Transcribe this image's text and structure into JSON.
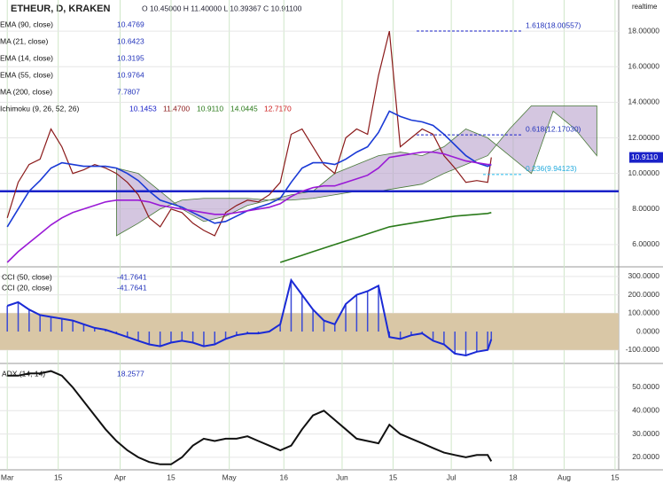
{
  "header": {
    "symbol": "ETHEUR, D, KRAKEN",
    "ohlc": "O 10.45000 H 11.40000 L 10.39367 C 10.91100",
    "realtime": "realtime",
    "last_price_label": "10.9110"
  },
  "legend": [
    {
      "label": "EMA (90, close)",
      "value": "10.4769"
    },
    {
      "label": "MA (21, close)",
      "value": "10.6423"
    },
    {
      "label": "EMA (14, close)",
      "value": "10.3195"
    },
    {
      "label": "EMA (55, close)",
      "value": "10.9764"
    },
    {
      "label": "MA (200, close)",
      "value": "7.7807"
    },
    {
      "label": "Ichimoku (9, 26, 52, 26)",
      "values": [
        "10.1453",
        "11.4700",
        "10.9110",
        "14.0445",
        "12.7170"
      ]
    }
  ],
  "chart_data": [
    {
      "type": "line",
      "xlim": [
        -2,
        168
      ],
      "ylim": [
        4.8,
        19.75
      ],
      "xticks": [
        {
          "value": 0,
          "label": "Mar"
        },
        {
          "value": 14,
          "label": "15"
        },
        {
          "value": 31,
          "label": "Apr"
        },
        {
          "value": 45,
          "label": "15"
        },
        {
          "value": 61,
          "label": "May"
        },
        {
          "value": 76,
          "label": "16"
        },
        {
          "value": 92,
          "label": "Jun"
        },
        {
          "value": 106,
          "label": "15"
        },
        {
          "value": 122,
          "label": "Jul"
        },
        {
          "value": 139,
          "label": "18"
        },
        {
          "value": 153,
          "label": "Aug"
        },
        {
          "value": 167,
          "label": "15"
        }
      ],
      "yticks": [
        {
          "value": 6,
          "label": "6.00000"
        },
        {
          "value": 8,
          "label": "8.00000"
        },
        {
          "value": 10,
          "label": "10.00000"
        },
        {
          "value": 12,
          "label": "12.00000"
        },
        {
          "value": 14,
          "label": "14.00000"
        },
        {
          "value": 16,
          "label": "16.00000"
        },
        {
          "value": 18,
          "label": "18.00000"
        }
      ],
      "grid": true,
      "x": [
        0,
        3,
        6,
        9,
        12,
        15,
        18,
        21,
        24,
        27,
        30,
        33,
        36,
        39,
        42,
        45,
        48,
        51,
        54,
        57,
        60,
        63,
        66,
        69,
        72,
        75,
        78,
        81,
        84,
        87,
        90,
        93,
        96,
        99,
        102,
        105,
        108,
        111,
        114,
        117,
        120,
        123,
        126,
        129,
        132,
        133
      ],
      "series": [
        {
          "name": "ETHEUR, D, KRAKEN",
          "color": "#8b1a1a",
          "values": [
            7.5,
            9.5,
            10.5,
            10.8,
            12.5,
            11.5,
            10.0,
            10.2,
            10.5,
            10.3,
            10.0,
            9.5,
            8.8,
            7.5,
            7.0,
            8.0,
            7.8,
            7.2,
            6.8,
            6.5,
            7.8,
            8.2,
            8.5,
            8.4,
            8.8,
            9.5,
            12.2,
            12.5,
            11.5,
            10.5,
            10.0,
            12.0,
            12.5,
            12.2,
            15.5,
            18.0,
            11.5,
            12.0,
            12.5,
            12.2,
            11.0,
            10.3,
            9.5,
            9.6,
            9.5,
            10.9
          ]
        },
        {
          "name": "MA (21, close)",
          "color": "#1a3ad6",
          "values": [
            7.0,
            8.0,
            9.0,
            9.6,
            10.3,
            10.6,
            10.5,
            10.4,
            10.4,
            10.4,
            10.3,
            10.0,
            9.6,
            9.0,
            8.5,
            8.3,
            8.1,
            7.8,
            7.5,
            7.2,
            7.3,
            7.6,
            7.9,
            8.1,
            8.3,
            8.6,
            9.5,
            10.3,
            10.6,
            10.6,
            10.5,
            10.8,
            11.2,
            11.5,
            12.3,
            13.5,
            13.2,
            13.0,
            12.9,
            12.7,
            12.2,
            11.6,
            11.0,
            10.6,
            10.4,
            10.5
          ]
        },
        {
          "name": "EMA (55, close)",
          "color": "#9a1ad6",
          "values": [
            5.0,
            5.6,
            6.1,
            6.6,
            7.1,
            7.5,
            7.8,
            8.0,
            8.2,
            8.4,
            8.5,
            8.5,
            8.5,
            8.4,
            8.2,
            8.1,
            8.0,
            7.9,
            7.8,
            7.7,
            7.7,
            7.8,
            7.9,
            8.0,
            8.1,
            8.3,
            8.7,
            9.0,
            9.2,
            9.3,
            9.3,
            9.5,
            9.7,
            9.9,
            10.3,
            10.9,
            11.0,
            11.1,
            11.2,
            11.2,
            11.1,
            10.9,
            10.7,
            10.6,
            10.5,
            10.5
          ]
        },
        {
          "name": "MA (200, close)",
          "color": "#2a7a1a",
          "values": [
            null,
            null,
            null,
            null,
            null,
            null,
            null,
            null,
            null,
            null,
            null,
            null,
            null,
            null,
            null,
            null,
            null,
            null,
            null,
            null,
            null,
            null,
            null,
            null,
            null,
            5.0,
            5.2,
            5.4,
            5.6,
            5.8,
            6.0,
            6.2,
            6.4,
            6.6,
            6.8,
            7.0,
            7.1,
            7.2,
            7.3,
            7.4,
            7.5,
            7.6,
            7.65,
            7.7,
            7.75,
            7.8
          ]
        }
      ],
      "cloud": {
        "color": "#b8a0cc",
        "x": [
          30,
          36,
          42,
          48,
          54,
          60,
          66,
          72,
          78,
          84,
          90,
          96,
          102,
          108,
          114,
          120,
          126,
          132,
          138,
          144,
          150,
          156,
          162
        ],
        "span_a": [
          10.3,
          10.0,
          9.0,
          8.0,
          7.3,
          7.6,
          8.2,
          8.5,
          8.8,
          9.0,
          10.0,
          10.5,
          11.0,
          11.2,
          11.0,
          11.5,
          12.5,
          12.0,
          11.0,
          10.0,
          13.5,
          12.5,
          11.0
        ],
        "span_b": [
          6.5,
          7.2,
          8.0,
          8.5,
          8.6,
          8.6,
          8.6,
          8.5,
          8.5,
          8.6,
          8.8,
          9.0,
          9.0,
          9.2,
          9.4,
          10.0,
          10.5,
          11.0,
          12.5,
          13.8,
          13.8,
          13.8,
          13.8
        ]
      },
      "support": 9.0,
      "fib": [
        {
          "label": "1.618(18.00557)",
          "value": 18.00557
        },
        {
          "label": "0.618(12.17030)",
          "value": 12.1703
        },
        {
          "label": "0.236(9.94123)",
          "value": 9.94123
        }
      ]
    },
    {
      "type": "line",
      "xlim": [
        -2,
        168
      ],
      "ylim": [
        -164,
        343
      ],
      "yticks": [
        {
          "value": -100,
          "label": "-100.0000"
        },
        {
          "value": 0,
          "label": "0.0000"
        },
        {
          "value": 100,
          "label": "100.0000"
        },
        {
          "value": 200,
          "label": "200.0000"
        },
        {
          "value": 300,
          "label": "300.0000"
        }
      ],
      "band": [
        -100,
        100
      ],
      "x": [
        0,
        3,
        6,
        9,
        12,
        15,
        18,
        21,
        24,
        27,
        30,
        33,
        36,
        39,
        42,
        45,
        48,
        51,
        54,
        57,
        60,
        63,
        66,
        69,
        72,
        75,
        78,
        81,
        84,
        87,
        90,
        93,
        96,
        99,
        102,
        105,
        108,
        111,
        114,
        117,
        120,
        123,
        126,
        129,
        132,
        133
      ],
      "series": [
        {
          "name": "CCI (50, close)",
          "color": "#1a2ad6",
          "values": [
            140,
            160,
            120,
            90,
            80,
            70,
            60,
            40,
            20,
            10,
            -10,
            -30,
            -50,
            -70,
            -80,
            -60,
            -50,
            -60,
            -80,
            -70,
            -40,
            -20,
            -10,
            -10,
            0,
            40,
            280,
            200,
            120,
            60,
            40,
            150,
            200,
            220,
            250,
            -30,
            -40,
            -20,
            -10,
            -50,
            -70,
            -120,
            -130,
            -110,
            -100,
            -42
          ]
        }
      ],
      "legend": [
        {
          "label": "CCI (50, close)",
          "value": "-41.7641"
        },
        {
          "label": "CCI (20, close)",
          "value": "-41.7641"
        }
      ]
    },
    {
      "type": "line",
      "xlim": [
        -2,
        168
      ],
      "ylim": [
        15.4,
        59.5
      ],
      "yticks": [
        {
          "value": 20,
          "label": "20.0000"
        },
        {
          "value": 30,
          "label": "30.0000"
        },
        {
          "value": 40,
          "label": "40.0000"
        },
        {
          "value": 50,
          "label": "50.0000"
        }
      ],
      "x": [
        0,
        3,
        6,
        9,
        12,
        15,
        18,
        21,
        24,
        27,
        30,
        33,
        36,
        39,
        42,
        45,
        48,
        51,
        54,
        57,
        60,
        63,
        66,
        69,
        72,
        75,
        78,
        81,
        84,
        87,
        90,
        93,
        96,
        99,
        102,
        105,
        108,
        111,
        114,
        117,
        120,
        123,
        126,
        129,
        132,
        133
      ],
      "series": [
        {
          "name": "ADX (14, 14)",
          "color": "#111111",
          "values": [
            55,
            55,
            56,
            56,
            57,
            55,
            50,
            44,
            38,
            32,
            27,
            23,
            20,
            18,
            17,
            17,
            20,
            25,
            28,
            27,
            28,
            28,
            29,
            27,
            25,
            23,
            25,
            32,
            38,
            40,
            36,
            32,
            28,
            27,
            26,
            34,
            30,
            28,
            26,
            24,
            22,
            21,
            20,
            21,
            21,
            18.3
          ]
        }
      ],
      "legend": [
        {
          "label": "ADX (14, 14)",
          "value": "18.2577"
        }
      ]
    }
  ]
}
